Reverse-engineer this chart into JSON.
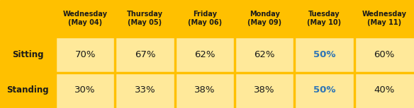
{
  "header_bg": "#FFC000",
  "data_bg": "#FFE99A",
  "row_label_bg": "#FFC000",
  "col_headers": [
    "Wednesday\n(May 04)",
    "Thursday\n(May 05)",
    "Friday\n(May 06)",
    "Monday\n(May 09)",
    "Tuesday\n(May 10)",
    "Wednesday\n(May 11)"
  ],
  "row_labels": [
    "Sitting",
    "Standing"
  ],
  "sitting_values": [
    "70%",
    "67%",
    "62%",
    "62%",
    "50%",
    "60%"
  ],
  "standing_values": [
    "30%",
    "33%",
    "38%",
    "38%",
    "50%",
    "40%"
  ],
  "highlight_col": 4,
  "highlight_color": "#2E75B6",
  "normal_text_color": "#1A1A1A",
  "header_text_color": "#1A1A1A",
  "row_label_text_color": "#1A1A1A",
  "divider_color": "#FFC000",
  "figsize": [
    5.84,
    1.53
  ],
  "dpi": 100
}
